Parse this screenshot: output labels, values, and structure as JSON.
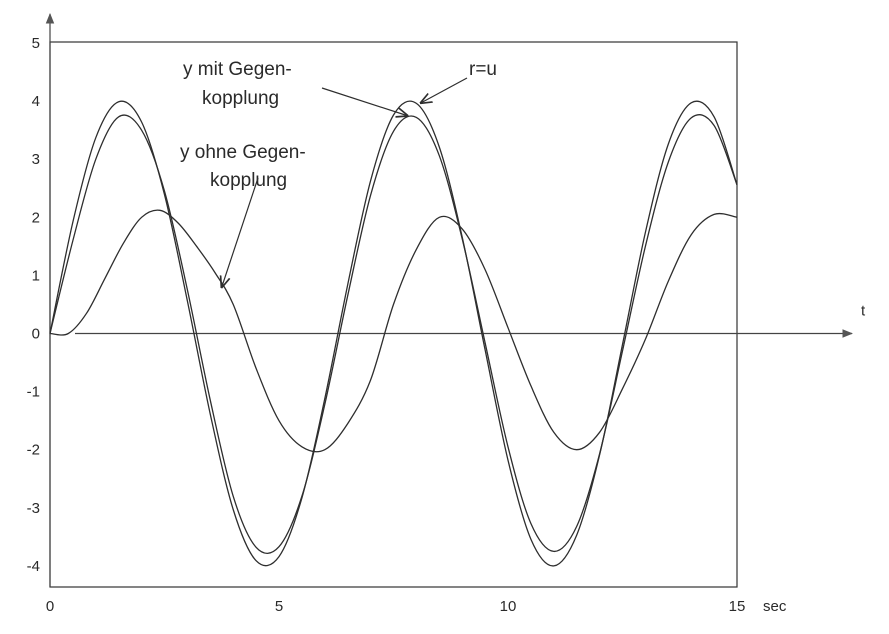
{
  "chart_data": {
    "type": "line",
    "title": "",
    "xlabel": "t",
    "x_unit": "sec",
    "ylabel": "",
    "xlim": [
      0,
      15
    ],
    "ylim": [
      -4.2,
      5
    ],
    "x_ticks": [
      0,
      5,
      10,
      15
    ],
    "y_ticks": [
      5,
      4,
      3,
      2,
      1,
      0,
      -1,
      -2,
      -3,
      -4
    ],
    "grid": false,
    "legend": "none",
    "series": [
      {
        "name": "r=u",
        "x": [
          0,
          0.5,
          1,
          1.5,
          2,
          2.5,
          3,
          3.5,
          4,
          4.5,
          5,
          5.5,
          6,
          6.5,
          7,
          7.5,
          8,
          8.5,
          9,
          9.5,
          10,
          10.5,
          11,
          11.5,
          12,
          12.5,
          13,
          13.5,
          14,
          14.5,
          15
        ],
        "y": [
          0,
          1.92,
          3.37,
          3.99,
          3.64,
          2.39,
          0.56,
          -1.39,
          -3.03,
          -3.91,
          -3.84,
          -2.83,
          -1.12,
          0.84,
          2.63,
          3.76,
          3.96,
          3.21,
          1.66,
          -0.28,
          -2.18,
          -3.54,
          -4.0,
          -3.47,
          -2.09,
          -0.19,
          1.74,
          3.26,
          3.97,
          3.73,
          2.56
        ]
      },
      {
        "name": "y mit Gegenkopplung",
        "x": [
          0,
          0.5,
          1,
          1.5,
          2,
          2.5,
          3,
          3.5,
          4,
          4.5,
          5,
          5.5,
          6,
          6.5,
          7,
          7.5,
          8,
          8.5,
          9,
          9.5,
          10,
          10.5,
          11,
          11.5,
          12,
          12.5,
          13,
          13.5,
          14,
          14.5,
          15
        ],
        "y": [
          0,
          1.6,
          3.0,
          3.73,
          3.5,
          2.45,
          0.75,
          -1.15,
          -2.8,
          -3.68,
          -3.67,
          -2.8,
          -1.22,
          0.65,
          2.38,
          3.48,
          3.72,
          3.06,
          1.63,
          -0.16,
          -1.95,
          -3.27,
          -3.75,
          -3.32,
          -2.07,
          -0.3,
          1.5,
          2.95,
          3.71,
          3.58,
          2.56
        ]
      },
      {
        "name": "y ohne Gegenkopplung",
        "x": [
          0,
          0.4,
          0.8,
          1.2,
          1.6,
          2.0,
          2.4,
          2.8,
          3.2,
          3.6,
          4.0,
          4.5,
          5.0,
          5.5,
          6.0,
          6.5,
          7.0,
          7.5,
          8.0,
          8.5,
          9.0,
          9.5,
          10.0,
          10.5,
          11.0,
          11.5,
          12.0,
          12.5,
          13.0,
          13.5,
          14.0,
          14.5,
          15.0
        ],
        "y": [
          0,
          0.0,
          0.35,
          0.95,
          1.55,
          2.0,
          2.12,
          1.9,
          1.5,
          1.05,
          0.5,
          -0.6,
          -1.5,
          -1.95,
          -2.0,
          -1.55,
          -0.8,
          0.5,
          1.45,
          2.0,
          1.8,
          1.1,
          0.1,
          -0.9,
          -1.7,
          -2.0,
          -1.7,
          -0.95,
          -0.1,
          0.9,
          1.7,
          2.05,
          2.0
        ]
      }
    ],
    "annotations": [
      {
        "text_lines": [
          "y mit Gegen-",
          "kopplung"
        ],
        "points_to_series": "y mit Gegenkopplung",
        "target": [
          7.8,
          3.75
        ]
      },
      {
        "text_lines": [
          "r=u"
        ],
        "points_to_series": "r=u",
        "target": [
          8.1,
          3.97
        ]
      },
      {
        "text_lines": [
          "y ohne Gegen-",
          "kopplung"
        ],
        "points_to_series": "y ohne Gegenkopplung",
        "target": [
          3.75,
          0.8
        ]
      }
    ]
  }
}
